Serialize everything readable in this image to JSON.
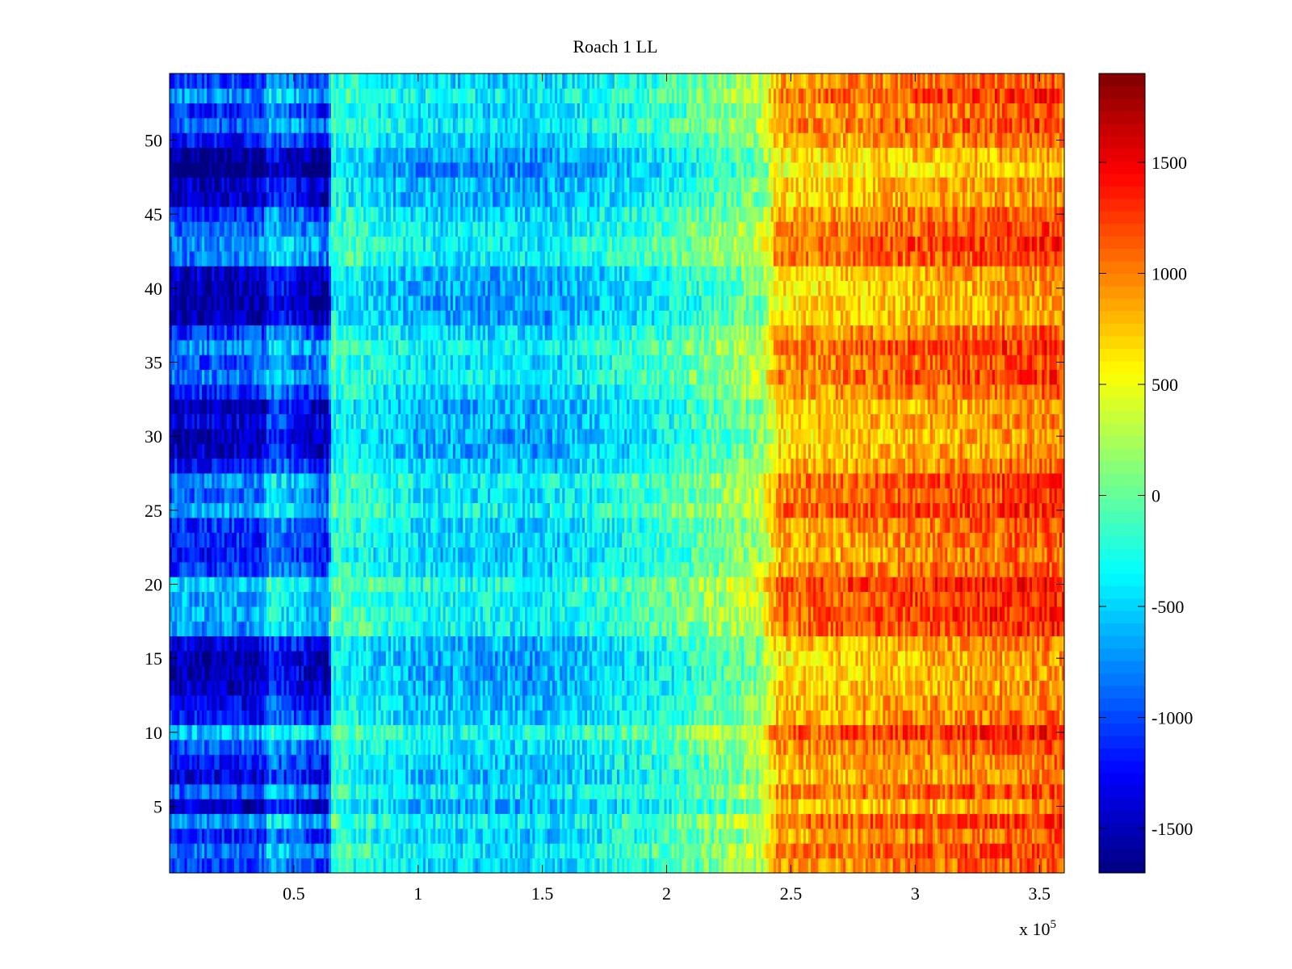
{
  "chart_data": {
    "type": "heatmap",
    "title": "Roach 1 LL",
    "x_range": [
      0,
      360000
    ],
    "x_ticks": [
      {
        "value": 50000,
        "label": "0.5"
      },
      {
        "value": 100000,
        "label": "1"
      },
      {
        "value": 150000,
        "label": "1.5"
      },
      {
        "value": 200000,
        "label": "2"
      },
      {
        "value": 250000,
        "label": "2.5"
      },
      {
        "value": 300000,
        "label": "3"
      },
      {
        "value": 350000,
        "label": "3.5"
      }
    ],
    "x_exponent_label": "x 10",
    "x_exponent_power": "5",
    "y_range": [
      0.5,
      54.5
    ],
    "y_ticks": [
      {
        "value": 5,
        "label": "5"
      },
      {
        "value": 10,
        "label": "10"
      },
      {
        "value": 15,
        "label": "15"
      },
      {
        "value": 20,
        "label": "20"
      },
      {
        "value": 25,
        "label": "25"
      },
      {
        "value": 30,
        "label": "30"
      },
      {
        "value": 35,
        "label": "35"
      },
      {
        "value": 40,
        "label": "40"
      },
      {
        "value": 45,
        "label": "45"
      },
      {
        "value": 50,
        "label": "50"
      }
    ],
    "rows": 54,
    "colormap": "jet",
    "color_range": [
      -1700,
      1900
    ],
    "colorbar_ticks": [
      {
        "value": 1500,
        "label": "1500"
      },
      {
        "value": 1000,
        "label": "1000"
      },
      {
        "value": 500,
        "label": "500"
      },
      {
        "value": 0,
        "label": "0"
      },
      {
        "value": -500,
        "label": "-500"
      },
      {
        "value": -1000,
        "label": "-1000"
      },
      {
        "value": -1500,
        "label": "-1500"
      }
    ],
    "x_profile": [
      {
        "x": 0,
        "value": -900
      },
      {
        "x": 38000,
        "value": -900
      },
      {
        "x": 40000,
        "value": -500
      },
      {
        "x": 64000,
        "value": -950
      },
      {
        "x": 65000,
        "value": -100
      },
      {
        "x": 100000,
        "value": -400
      },
      {
        "x": 150000,
        "value": -450
      },
      {
        "x": 200000,
        "value": -100
      },
      {
        "x": 238000,
        "value": 300
      },
      {
        "x": 245000,
        "value": 950
      },
      {
        "x": 300000,
        "value": 1100
      },
      {
        "x": 360000,
        "value": 1250
      }
    ],
    "row_offsets": [
      -100,
      50,
      -150,
      100,
      -350,
      0,
      -300,
      -200,
      -50,
      200,
      -200,
      -250,
      -350,
      -400,
      -400,
      -300,
      100,
      150,
      150,
      250,
      -100,
      -200,
      -150,
      -100,
      150,
      0,
      100,
      -200,
      -350,
      -400,
      -300,
      -350,
      -150,
      50,
      -50,
      100,
      -100,
      -400,
      -450,
      -400,
      -350,
      50,
      100,
      0,
      -100,
      -350,
      -350,
      -550,
      -450,
      -200,
      0,
      -150,
      100,
      -100
    ],
    "noise_amplitude": 300
  }
}
